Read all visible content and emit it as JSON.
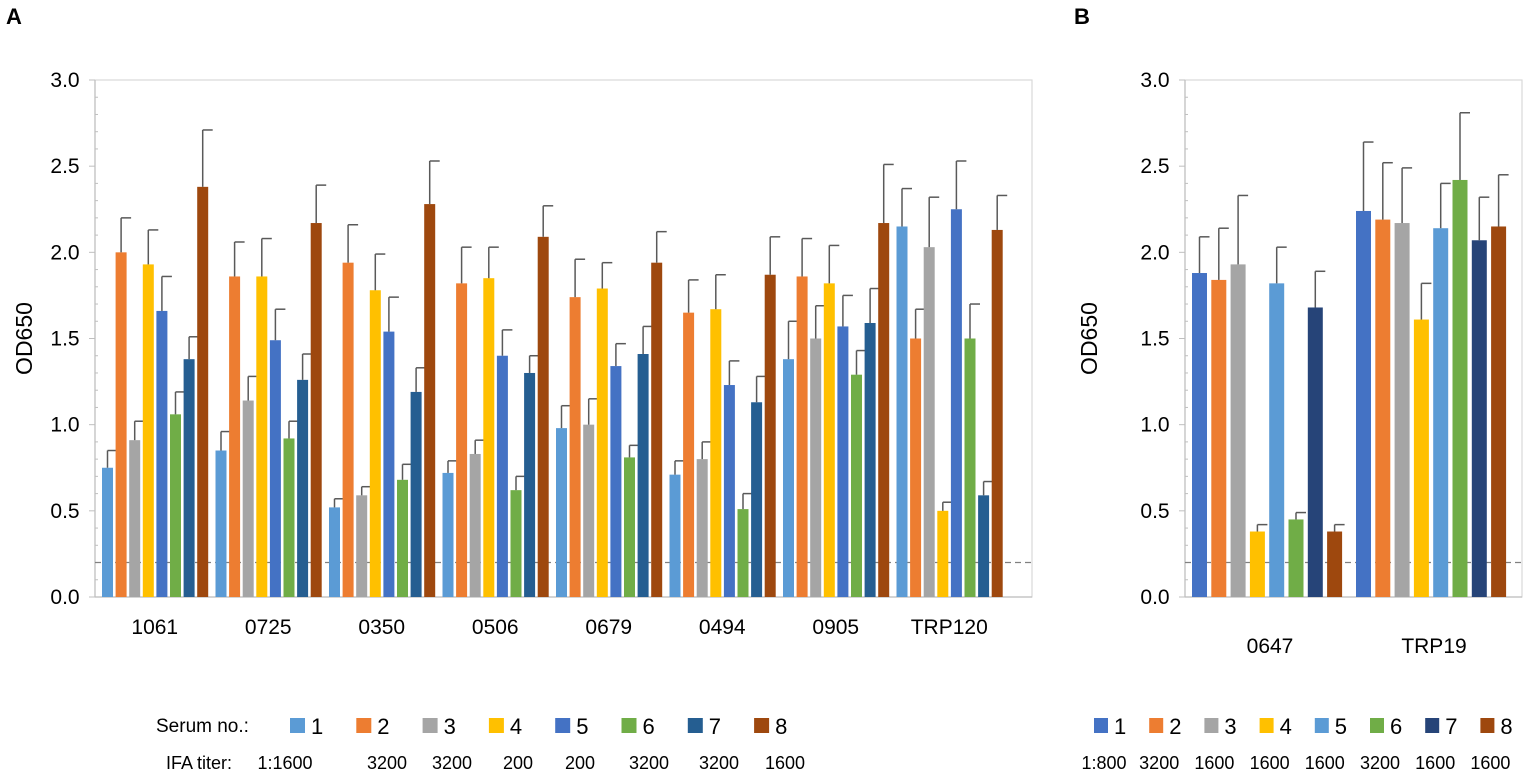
{
  "colors": {
    "s1": "#5B9BD5",
    "s2": "#ED7D31",
    "s3": "#A5A5A5",
    "s4": "#FFC000",
    "s5": "#4472C4",
    "s6": "#70AD47",
    "s7": "#255E91",
    "s8": "#9E480E",
    "bS1": "#4472C4",
    "bS2": "#ED7D31",
    "bS3": "#A5A5A5",
    "bS4": "#FFC000",
    "bS5": "#5B9BD5",
    "bS6": "#70AD47",
    "bS7": "#264478",
    "bS8": "#9E480E"
  },
  "chart_data": [
    {
      "panel": "A",
      "type": "bar",
      "ylabel": "OD650",
      "ylim": [
        0,
        3.0
      ],
      "yticks": [
        "0.0",
        "0.5",
        "1.0",
        "1.5",
        "2.0",
        "2.5",
        "3.0"
      ],
      "cutoff": 0.2,
      "categories": [
        "1061",
        "0725",
        "0350",
        "0506",
        "0679",
        "0494",
        "0905",
        "TRP120"
      ],
      "series": [
        {
          "name": "1",
          "color_key": "s1",
          "values": [
            0.75,
            0.85,
            0.52,
            0.72,
            0.98,
            0.71,
            1.38,
            2.15
          ],
          "errors": [
            0.1,
            0.11,
            0.05,
            0.07,
            0.13,
            0.08,
            0.22,
            0.22
          ]
        },
        {
          "name": "2",
          "color_key": "s2",
          "values": [
            2.0,
            1.86,
            1.94,
            1.82,
            1.74,
            1.65,
            1.86,
            1.5
          ],
          "errors": [
            0.2,
            0.2,
            0.22,
            0.21,
            0.22,
            0.19,
            0.22,
            0.17
          ]
        },
        {
          "name": "3",
          "color_key": "s3",
          "values": [
            0.91,
            1.14,
            0.59,
            0.83,
            1.0,
            0.8,
            1.5,
            2.03
          ],
          "errors": [
            0.11,
            0.14,
            0.05,
            0.08,
            0.15,
            0.1,
            0.19,
            0.29
          ]
        },
        {
          "name": "4",
          "color_key": "s4",
          "values": [
            1.93,
            1.86,
            1.78,
            1.85,
            1.79,
            1.67,
            1.82,
            0.5
          ],
          "errors": [
            0.2,
            0.22,
            0.21,
            0.18,
            0.15,
            0.2,
            0.22,
            0.05
          ]
        },
        {
          "name": "5",
          "color_key": "s5",
          "values": [
            1.66,
            1.49,
            1.54,
            1.4,
            1.34,
            1.23,
            1.57,
            2.25
          ],
          "errors": [
            0.2,
            0.18,
            0.2,
            0.15,
            0.13,
            0.14,
            0.18,
            0.28
          ]
        },
        {
          "name": "6",
          "color_key": "s6",
          "values": [
            1.06,
            0.92,
            0.68,
            0.62,
            0.81,
            0.51,
            1.29,
            1.5
          ],
          "errors": [
            0.13,
            0.1,
            0.09,
            0.08,
            0.07,
            0.09,
            0.14,
            0.2
          ]
        },
        {
          "name": "7",
          "color_key": "s7",
          "values": [
            1.38,
            1.26,
            1.19,
            1.3,
            1.41,
            1.13,
            1.59,
            0.59
          ],
          "errors": [
            0.13,
            0.15,
            0.14,
            0.1,
            0.16,
            0.15,
            0.2,
            0.08
          ]
        },
        {
          "name": "8",
          "color_key": "s8",
          "values": [
            2.38,
            2.17,
            2.28,
            2.09,
            1.94,
            1.87,
            2.17,
            2.13
          ],
          "errors": [
            0.33,
            0.22,
            0.25,
            0.18,
            0.18,
            0.22,
            0.34,
            0.2
          ]
        }
      ],
      "legend_label": "Serum no.:",
      "titer_label": "IFA titer:",
      "titers": [
        "1:1600",
        "3200",
        "3200",
        "200",
        "200",
        "3200",
        "3200",
        "1600"
      ]
    },
    {
      "panel": "B",
      "type": "bar",
      "ylabel": "OD650",
      "ylim": [
        0,
        3.0
      ],
      "yticks": [
        "0.0",
        "0.5",
        "1.0",
        "1.5",
        "2.0",
        "2.5",
        "3.0"
      ],
      "cutoff": 0.2,
      "categories": [
        "0647",
        "TRP19"
      ],
      "series": [
        {
          "name": "1",
          "color_key": "bS1",
          "values": [
            1.88,
            2.24
          ],
          "errors": [
            0.21,
            0.4
          ]
        },
        {
          "name": "2",
          "color_key": "bS2",
          "values": [
            1.84,
            2.19
          ],
          "errors": [
            0.3,
            0.33
          ]
        },
        {
          "name": "3",
          "color_key": "bS3",
          "values": [
            1.93,
            2.17
          ],
          "errors": [
            0.4,
            0.32
          ]
        },
        {
          "name": "4",
          "color_key": "bS4",
          "values": [
            0.38,
            1.61
          ],
          "errors": [
            0.04,
            0.21
          ]
        },
        {
          "name": "5",
          "color_key": "bS5",
          "values": [
            1.82,
            2.14
          ],
          "errors": [
            0.21,
            0.26
          ]
        },
        {
          "name": "6",
          "color_key": "bS6",
          "values": [
            0.45,
            2.42
          ],
          "errors": [
            0.04,
            0.39
          ]
        },
        {
          "name": "7",
          "color_key": "bS7",
          "values": [
            1.68,
            2.07
          ],
          "errors": [
            0.21,
            0.25
          ]
        },
        {
          "name": "8",
          "color_key": "bS8",
          "values": [
            0.38,
            2.15
          ],
          "errors": [
            0.04,
            0.3
          ]
        }
      ],
      "titers": [
        "1:800",
        "3200",
        "1600",
        "1600",
        "1600",
        "3200",
        "1600",
        "1600"
      ]
    }
  ]
}
